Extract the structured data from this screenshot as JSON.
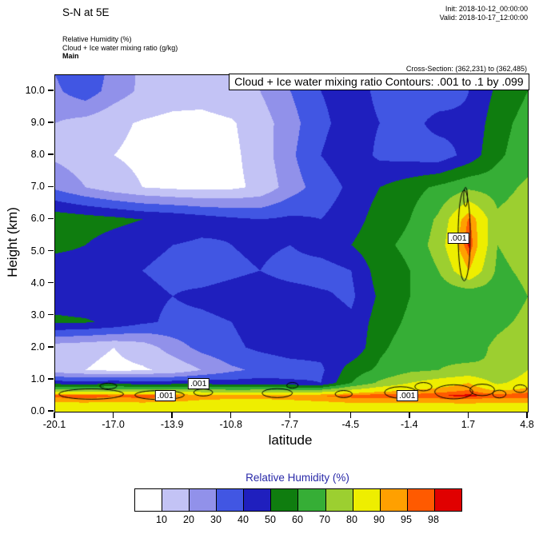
{
  "header": {
    "title": "S-N at 5E",
    "init_label": "Init: 2018-10-12_00:00:00",
    "valid_label": "Valid: 2018-10-17_12:00:00",
    "field_line1": "Relative Humidity  (%)",
    "field_line2": "Cloud + Ice water mixing ratio  (g/kg)",
    "field_line3": "Main",
    "cross_section": "Cross-Section: (362,231) to (362,485)"
  },
  "plot": {
    "banner": "Cloud + Ice water mixing ratio Contours: .001 to .1 by .099",
    "xlabel": "latitude",
    "ylabel": "Height (km)"
  },
  "chart_data": {
    "type": "heatmap",
    "title": "S-N at 5E",
    "xlabel": "latitude",
    "ylabel": "Height (km)",
    "xlim": [
      -20.1,
      4.8
    ],
    "ylim": [
      0,
      10.5
    ],
    "x_ticks": [
      -20.1,
      -17.0,
      -13.9,
      -10.8,
      -7.7,
      -4.5,
      -1.4,
      1.7,
      4.8
    ],
    "y_ticks": [
      0.0,
      1.0,
      2.0,
      3.0,
      4.0,
      5.0,
      6.0,
      7.0,
      8.0,
      9.0,
      10.0
    ],
    "levels": [
      10,
      20,
      30,
      40,
      50,
      60,
      70,
      80,
      90,
      95,
      98
    ],
    "colors": [
      "#ffffff",
      "#c3c3f5",
      "#9191ea",
      "#4156e3",
      "#1f1fbe",
      "#0f7d0f",
      "#36ae36",
      "#9ccf30",
      "#eeee00",
      "#ffa000",
      "#ff5a00",
      "#e00000"
    ],
    "colorbar": {
      "title": "Relative Humidity  (%)",
      "labels": [
        10,
        20,
        30,
        40,
        50,
        60,
        70,
        80,
        90,
        95,
        98
      ]
    },
    "grid": {
      "lats": [
        -20.1,
        -18.5,
        -17.0,
        -15.5,
        -13.9,
        -12.4,
        -10.8,
        -9.3,
        -7.7,
        -6.1,
        -4.5,
        -3.0,
        -1.4,
        0.1,
        1.7,
        3.2,
        4.8
      ],
      "heights": [
        0.15,
        0.5,
        0.9,
        1.3,
        2.0,
        2.8,
        3.6,
        4.4,
        5.2,
        6.0,
        7.0,
        8.0,
        9.0,
        10.0,
        10.5
      ],
      "rh": [
        [
          85,
          85,
          85,
          85,
          85,
          85,
          85,
          85,
          85,
          85,
          86,
          86,
          86,
          86,
          86,
          86,
          86
        ],
        [
          97,
          98,
          96,
          98,
          96,
          93,
          92,
          92,
          93,
          95,
          97,
          98,
          97,
          98,
          99,
          97,
          98
        ],
        [
          45,
          44,
          46,
          44,
          45,
          46,
          44,
          45,
          42,
          40,
          60,
          72,
          80,
          85,
          90,
          78,
          85
        ],
        [
          14,
          10,
          8,
          9,
          12,
          20,
          28,
          32,
          35,
          38,
          55,
          62,
          68,
          70,
          72,
          70,
          80
        ],
        [
          14,
          12,
          10,
          14,
          25,
          33,
          38,
          42,
          45,
          44,
          42,
          58,
          65,
          68,
          66,
          72,
          75
        ],
        [
          52,
          51,
          48,
          42,
          38,
          38,
          40,
          44,
          48,
          46,
          42,
          55,
          62,
          65,
          64,
          68,
          72
        ],
        [
          45,
          44,
          43,
          42,
          40,
          42,
          44,
          46,
          45,
          42,
          38,
          52,
          60,
          63,
          62,
          65,
          70
        ],
        [
          42,
          43,
          42,
          40,
          38,
          36,
          38,
          40,
          36,
          35,
          40,
          55,
          60,
          70,
          90,
          68,
          72
        ],
        [
          54,
          50,
          45,
          42,
          40,
          38,
          40,
          42,
          40,
          45,
          50,
          58,
          62,
          75,
          99,
          70,
          74
        ],
        [
          57,
          55,
          53,
          50,
          48,
          45,
          42,
          40,
          42,
          40,
          45,
          55,
          60,
          72,
          96,
          72,
          76
        ],
        [
          28,
          20,
          14,
          10,
          8,
          7,
          8,
          12,
          25,
          35,
          42,
          50,
          56,
          62,
          68,
          66,
          72
        ],
        [
          18,
          14,
          10,
          8,
          6,
          6,
          8,
          14,
          28,
          40,
          46,
          38,
          36,
          34,
          44,
          58,
          66
        ],
        [
          20,
          16,
          12,
          9,
          7,
          7,
          9,
          15,
          26,
          38,
          44,
          40,
          36,
          44,
          42,
          56,
          64
        ],
        [
          28,
          36,
          25,
          18,
          15,
          14,
          16,
          20,
          30,
          40,
          44,
          38,
          34,
          33,
          40,
          52,
          60
        ],
        [
          30,
          38,
          26,
          18,
          15,
          14,
          16,
          22,
          32,
          42,
          45,
          38,
          35,
          34,
          40,
          52,
          58
        ]
      ]
    },
    "cloud_contours": {
      "label": ".001",
      "labels_pos": [
        [
          -14.3,
          0.5
        ],
        [
          -12.55,
          0.88
        ],
        [
          -1.55,
          0.5
        ],
        [
          1.15,
          5.4
        ]
      ],
      "ellipses": [
        [
          -18.2,
          0.55,
          1.7,
          0.16
        ],
        [
          -17.3,
          0.8,
          0.45,
          0.09
        ],
        [
          -14.6,
          0.52,
          1.3,
          0.14
        ],
        [
          -12.3,
          0.6,
          0.5,
          0.11
        ],
        [
          -8.4,
          0.58,
          0.8,
          0.14
        ],
        [
          -7.6,
          0.82,
          0.3,
          0.09
        ],
        [
          -4.9,
          0.55,
          0.45,
          0.11
        ],
        [
          -1.9,
          0.6,
          0.85,
          0.18
        ],
        [
          -0.7,
          0.78,
          0.45,
          0.13
        ],
        [
          0.9,
          0.62,
          1.0,
          0.22
        ],
        [
          2.4,
          0.68,
          0.65,
          0.18
        ],
        [
          3.3,
          0.55,
          0.35,
          0.12
        ],
        [
          4.4,
          0.72,
          0.35,
          0.12
        ],
        [
          1.45,
          5.5,
          0.32,
          1.42
        ],
        [
          1.52,
          6.7,
          0.1,
          0.3
        ]
      ]
    }
  }
}
